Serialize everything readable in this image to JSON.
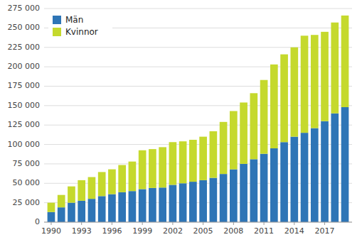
{
  "chart_data": {
    "type": "bar",
    "stacked": true,
    "x": [
      1990,
      1991,
      1992,
      1993,
      1994,
      1995,
      1996,
      1997,
      1998,
      1999,
      2000,
      2001,
      2002,
      2003,
      2004,
      2005,
      2006,
      2007,
      2008,
      2009,
      2010,
      2011,
      2012,
      2013,
      2014,
      2015,
      2016,
      2017,
      2018,
      2019
    ],
    "series": [
      {
        "name": "Män",
        "color": "#2E75B6",
        "values": [
          13000,
          19000,
          25000,
          27500,
          30000,
          33500,
          36000,
          38500,
          40000,
          42500,
          44000,
          44500,
          48000,
          50000,
          52000,
          54000,
          57000,
          62000,
          68000,
          75000,
          81000,
          88000,
          95000,
          103000,
          110000,
          115000,
          121000,
          130000,
          140000,
          148000
        ]
      },
      {
        "name": "Kvinnor",
        "color": "#C5D92D",
        "values": [
          12000,
          16000,
          21000,
          26500,
          28000,
          31000,
          32000,
          35000,
          38000,
          50000,
          50000,
          52000,
          55000,
          54000,
          54000,
          56000,
          60000,
          67000,
          75000,
          79000,
          85000,
          95000,
          108000,
          113000,
          115000,
          125000,
          120000,
          115000,
          117000,
          118000
        ]
      }
    ],
    "xlim": [
      1989.3,
      2019.7
    ],
    "xticks": [
      1990,
      1993,
      1996,
      1999,
      2002,
      2005,
      2008,
      2011,
      2014,
      2017
    ],
    "ylim": [
      0,
      275000
    ],
    "yticks": [
      0,
      {
        "value": 25000,
        "label": "25 000"
      },
      {
        "value": 50000,
        "label": "50 000"
      },
      {
        "value": 75000,
        "label": "75 000"
      },
      {
        "value": 100000,
        "label": "100 000"
      },
      {
        "value": 125000,
        "label": "125 000"
      },
      {
        "value": 150000,
        "label": "150 000"
      },
      {
        "value": 175000,
        "label": "175 000"
      },
      {
        "value": 200000,
        "label": "200 000"
      },
      {
        "value": 225000,
        "label": "225 000"
      },
      {
        "value": 250000,
        "label": "250 000"
      },
      {
        "value": 275000,
        "label": "275 000"
      }
    ],
    "grid": true,
    "legend": "upper left"
  }
}
